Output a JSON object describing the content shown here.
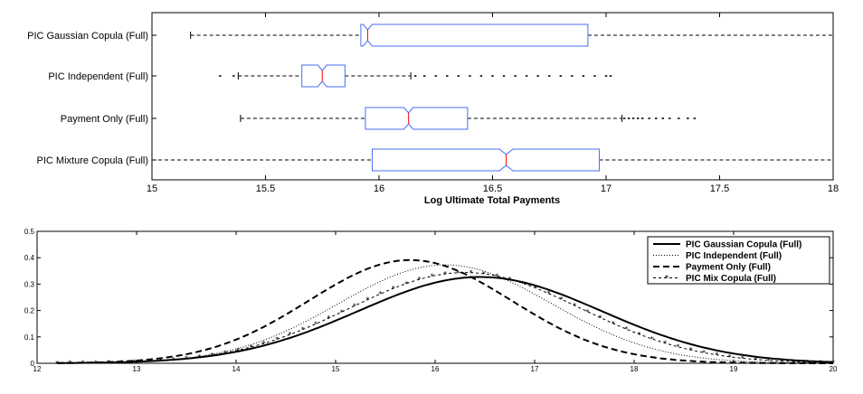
{
  "chart_data": [
    {
      "type": "boxplot",
      "orientation": "horizontal",
      "notched": true,
      "xlabel": "Log Ultimate Total Payments",
      "xlim": [
        15,
        18
      ],
      "xticks": [
        "15",
        "15.5",
        "16",
        "16.5",
        "17",
        "17.5",
        "18"
      ],
      "box_color": "#4a6cf0",
      "median_color": "#ff0000",
      "categories": [
        "PIC Gaussian Copula (Full)",
        "PIC Independent (Full)",
        "Payment Only (Full)",
        "PIC Mixture Copula (Full)"
      ],
      "boxes": [
        {
          "whisker_low": 15.17,
          "q1": 15.92,
          "median": 15.95,
          "q3": 16.92,
          "notch_low": 15.93,
          "notch_high": 15.97,
          "whisker_high": 18.0,
          "outliers": []
        },
        {
          "whisker_low": 15.38,
          "q1": 15.66,
          "median": 15.75,
          "q3": 15.85,
          "notch_low": 15.73,
          "notch_high": 15.77,
          "whisker_high": 16.14,
          "outliers": [
            15.3,
            15.36,
            16.16,
            16.2,
            16.25,
            16.3,
            16.35,
            16.4,
            16.45,
            16.5,
            16.55,
            16.6,
            16.65,
            16.7,
            16.75,
            16.8,
            16.85,
            16.9,
            16.95,
            17.0,
            17.02
          ]
        },
        {
          "whisker_low": 15.39,
          "q1": 15.94,
          "median": 16.13,
          "q3": 16.39,
          "notch_low": 16.11,
          "notch_high": 16.15,
          "whisker_high": 17.07,
          "outliers": [
            17.08,
            17.1,
            17.12,
            17.14,
            17.16,
            17.19,
            17.22,
            17.25,
            17.28,
            17.32,
            17.36,
            17.39
          ]
        },
        {
          "whisker_low": 15.0,
          "q1": 15.97,
          "median": 16.56,
          "q3": 16.97,
          "notch_low": 16.53,
          "notch_high": 16.59,
          "whisker_high": 18.0,
          "outliers": []
        }
      ]
    },
    {
      "type": "line",
      "xlim": [
        12,
        20
      ],
      "ylim": [
        0,
        0.5
      ],
      "xticks": [
        "12",
        "13",
        "14",
        "15",
        "16",
        "17",
        "18",
        "19",
        "20"
      ],
      "yticks": [
        "0",
        "0.1",
        "0.2",
        "0.3",
        "0.4",
        "0.5"
      ],
      "legend_position": "top-right",
      "series": [
        {
          "name": "PIC Gaussian Copula (Full)",
          "style": "solid",
          "mean": 16.45,
          "sd": 1.22
        },
        {
          "name": "PIC Independent (Full)",
          "style": "dotted",
          "mean": 16.1,
          "sd": 1.07
        },
        {
          "name": "Payment Only (Full)",
          "style": "dashed",
          "mean": 15.75,
          "sd": 1.02
        },
        {
          "name": "PIC Mix Copula (Full)",
          "style": "dash-dot-star",
          "mean": 16.3,
          "sd": 1.16
        }
      ]
    }
  ]
}
